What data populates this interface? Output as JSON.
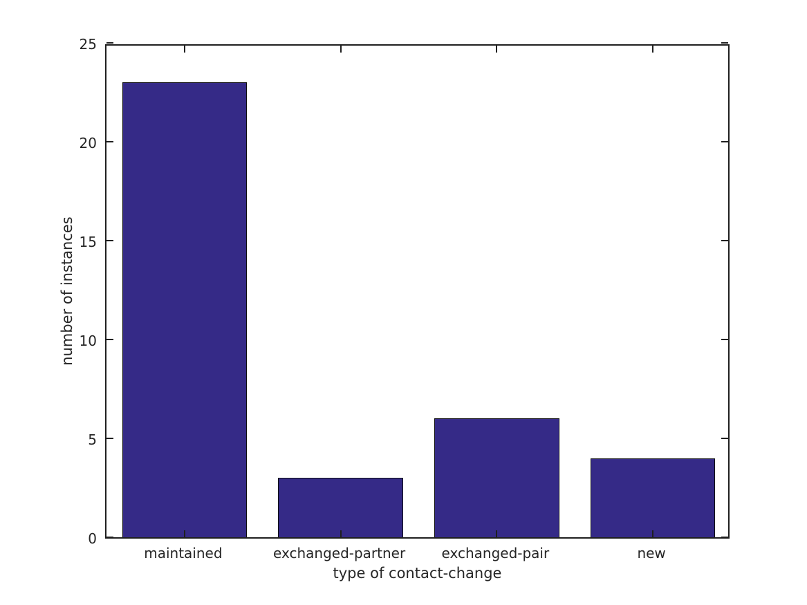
{
  "figure": {
    "background_color": "#ffffff",
    "axis_line_color": "#1f1f1f",
    "text_color": "#262626"
  },
  "chart_data": {
    "type": "bar",
    "title": "",
    "categories": [
      "maintained",
      "exchanged-partner",
      "exchanged-pair",
      "new"
    ],
    "values": [
      23,
      3,
      6,
      4
    ],
    "xlabel": "type of contact-change",
    "ylabel": "number of instances",
    "ylim": [
      0,
      25
    ],
    "yticks": [
      0,
      5,
      10,
      15,
      20,
      25
    ],
    "bar_color": "#352a87",
    "bar_edge_color": "#0d0d0d",
    "bar_width_fraction": 0.8,
    "grid": false,
    "legend": "none",
    "tick_direction": "in",
    "box": true
  }
}
